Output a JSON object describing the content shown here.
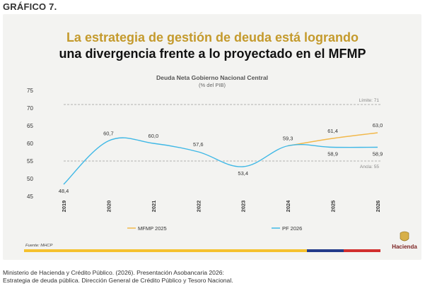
{
  "header": {
    "label": "GRÁFICO 7."
  },
  "title": {
    "line1": "La estrategia de gestión de deuda está logrando",
    "line2": "una divergencia frente a lo proyectado en el MFMP"
  },
  "source_note": "Fuente: MHCP",
  "logo": {
    "text": "Hacienda",
    "icon": "hacienda-seal-icon"
  },
  "footer": {
    "line1": "Ministerio de Hacienda y Crédito Público. (2026). Presentación Asobancaria 2026:",
    "line2": "Estrategia de deuda pública. Dirección General de Crédito Público y Tesoro Nacional."
  },
  "colors": {
    "title_accent": "#c49a2c",
    "series_mfmp": "#f2b84a",
    "series_pf": "#3fb8e6",
    "bar_yellow": "#f5c12e",
    "bar_blue": "#233b8a",
    "bar_red": "#d12e2e"
  },
  "chart_data": {
    "type": "line",
    "title": "Deuda Neta Gobierno Nacional Central",
    "subtitle": "(% del PIB)",
    "x": [
      "2019",
      "2020",
      "2021",
      "2022",
      "2023",
      "2024",
      "2025",
      "2026"
    ],
    "ylim": [
      45,
      75
    ],
    "yticks": [
      45,
      50,
      55,
      60,
      65,
      70,
      75
    ],
    "grid": false,
    "legend_position": "bottom",
    "series": [
      {
        "name": "MFMP 2025",
        "x": [
          "2024",
          "2025",
          "2026"
        ],
        "values": [
          59.3,
          61.4,
          63.0
        ],
        "labels": [
          "",
          "61,4",
          "63,0"
        ]
      },
      {
        "name": "PF 2026",
        "x": [
          "2019",
          "2020",
          "2021",
          "2022",
          "2023",
          "2024",
          "2025",
          "2026"
        ],
        "values": [
          48.4,
          60.7,
          60.0,
          57.6,
          53.4,
          59.3,
          58.9,
          58.9
        ],
        "labels": [
          "48,4",
          "60,7",
          "60,0",
          "57,6",
          "53,4",
          "59,3",
          "58,9",
          "58,9"
        ]
      }
    ],
    "reference_lines": [
      {
        "label": "Límite: 71",
        "value": 71
      },
      {
        "label": "Ancla: 55",
        "value": 55
      }
    ]
  }
}
